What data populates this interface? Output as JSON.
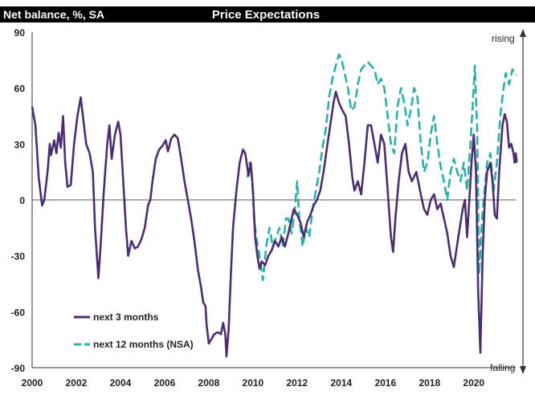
{
  "header": {
    "unit_label": "Net balance, %, SA",
    "title": "Price Expectations"
  },
  "annotations": {
    "top": "rising",
    "bottom": "falling"
  },
  "colors": {
    "header_bg": "#000000",
    "header_text": "#ffffff",
    "series_1": "#4b2e6f",
    "series_2": "#2ab0a8",
    "zero_line": "#555555",
    "axis": "#333333"
  },
  "chart_data": {
    "type": "line",
    "title": "Price Expectations",
    "ylabel": "Net balance, %, SA",
    "xlim": [
      2000,
      2021.9
    ],
    "ylim": [
      -90,
      90
    ],
    "y_ticks": [
      90,
      60,
      30,
      0,
      -30,
      -60,
      -90
    ],
    "x_ticks": [
      2000,
      2002,
      2004,
      2006,
      2008,
      2010,
      2012,
      2014,
      2016,
      2018,
      2020
    ],
    "legend_position": "bottom-left",
    "series": [
      {
        "name": "next 3 months",
        "style": "solid",
        "points": [
          [
            2000.0,
            50
          ],
          [
            2000.15,
            40
          ],
          [
            2000.3,
            12
          ],
          [
            2000.45,
            -3
          ],
          [
            2000.55,
            0
          ],
          [
            2000.7,
            15
          ],
          [
            2000.8,
            30
          ],
          [
            2000.85,
            24
          ],
          [
            2001.0,
            32
          ],
          [
            2001.1,
            25
          ],
          [
            2001.2,
            36
          ],
          [
            2001.3,
            28
          ],
          [
            2001.4,
            45
          ],
          [
            2001.5,
            20
          ],
          [
            2001.6,
            7
          ],
          [
            2001.75,
            8
          ],
          [
            2001.9,
            30
          ],
          [
            2002.05,
            45
          ],
          [
            2002.2,
            55
          ],
          [
            2002.3,
            45
          ],
          [
            2002.45,
            30
          ],
          [
            2002.6,
            25
          ],
          [
            2002.75,
            15
          ],
          [
            2002.85,
            -15
          ],
          [
            2003.0,
            -42
          ],
          [
            2003.1,
            -25
          ],
          [
            2003.25,
            5
          ],
          [
            2003.4,
            30
          ],
          [
            2003.5,
            40
          ],
          [
            2003.6,
            22
          ],
          [
            2003.75,
            35
          ],
          [
            2003.9,
            42
          ],
          [
            2004.0,
            35
          ],
          [
            2004.15,
            5
          ],
          [
            2004.25,
            -15
          ],
          [
            2004.35,
            -30
          ],
          [
            2004.5,
            -22
          ],
          [
            2004.65,
            -26
          ],
          [
            2004.8,
            -25
          ],
          [
            2004.95,
            -21
          ],
          [
            2005.1,
            -15
          ],
          [
            2005.25,
            -3
          ],
          [
            2005.35,
            0
          ],
          [
            2005.45,
            10
          ],
          [
            2005.6,
            22
          ],
          [
            2005.75,
            27
          ],
          [
            2005.9,
            29
          ],
          [
            2006.05,
            32
          ],
          [
            2006.15,
            26
          ],
          [
            2006.3,
            33
          ],
          [
            2006.45,
            35
          ],
          [
            2006.6,
            33
          ],
          [
            2006.75,
            22
          ],
          [
            2006.9,
            10
          ],
          [
            2007.05,
            0
          ],
          [
            2007.2,
            -10
          ],
          [
            2007.35,
            -22
          ],
          [
            2007.5,
            -37
          ],
          [
            2007.65,
            -47
          ],
          [
            2007.75,
            -55
          ],
          [
            2007.85,
            -57
          ],
          [
            2007.9,
            -67
          ],
          [
            2008.0,
            -77
          ],
          [
            2008.1,
            -75
          ],
          [
            2008.25,
            -72
          ],
          [
            2008.4,
            -71
          ],
          [
            2008.55,
            -72
          ],
          [
            2008.65,
            -66
          ],
          [
            2008.75,
            -72
          ],
          [
            2008.8,
            -84
          ],
          [
            2008.9,
            -70
          ],
          [
            2009.0,
            -40
          ],
          [
            2009.1,
            -15
          ],
          [
            2009.25,
            5
          ],
          [
            2009.4,
            20
          ],
          [
            2009.55,
            27
          ],
          [
            2009.65,
            25
          ],
          [
            2009.8,
            13
          ],
          [
            2009.9,
            20
          ],
          [
            2010.0,
            5
          ],
          [
            2010.1,
            -20
          ],
          [
            2010.2,
            -30
          ],
          [
            2010.3,
            -37
          ],
          [
            2010.4,
            -33
          ],
          [
            2010.55,
            -35
          ],
          [
            2010.7,
            -30
          ],
          [
            2010.85,
            -27
          ],
          [
            2011.0,
            -22
          ],
          [
            2011.15,
            -25
          ],
          [
            2011.3,
            -20
          ],
          [
            2011.45,
            -25
          ],
          [
            2011.6,
            -18
          ],
          [
            2011.75,
            -10
          ],
          [
            2011.85,
            -5
          ],
          [
            2012.0,
            -8
          ],
          [
            2012.15,
            -12
          ],
          [
            2012.3,
            -20
          ],
          [
            2012.45,
            -12
          ],
          [
            2012.6,
            -8
          ],
          [
            2012.75,
            -3
          ],
          [
            2012.9,
            0
          ],
          [
            2013.05,
            5
          ],
          [
            2013.2,
            15
          ],
          [
            2013.35,
            28
          ],
          [
            2013.5,
            40
          ],
          [
            2013.65,
            52
          ],
          [
            2013.75,
            58
          ],
          [
            2013.9,
            52
          ],
          [
            2014.05,
            48
          ],
          [
            2014.2,
            45
          ],
          [
            2014.35,
            30
          ],
          [
            2014.5,
            12
          ],
          [
            2014.6,
            5
          ],
          [
            2014.75,
            10
          ],
          [
            2014.9,
            3
          ],
          [
            2015.05,
            20
          ],
          [
            2015.2,
            40
          ],
          [
            2015.35,
            40
          ],
          [
            2015.5,
            30
          ],
          [
            2015.65,
            20
          ],
          [
            2015.8,
            35
          ],
          [
            2015.95,
            30
          ],
          [
            2016.1,
            5
          ],
          [
            2016.25,
            -20
          ],
          [
            2016.35,
            -28
          ],
          [
            2016.45,
            -10
          ],
          [
            2016.6,
            10
          ],
          [
            2016.75,
            25
          ],
          [
            2016.9,
            30
          ],
          [
            2017.05,
            15
          ],
          [
            2017.2,
            10
          ],
          [
            2017.4,
            15
          ],
          [
            2017.6,
            3
          ],
          [
            2017.75,
            -5
          ],
          [
            2017.9,
            -8
          ],
          [
            2018.05,
            0
          ],
          [
            2018.2,
            3
          ],
          [
            2018.35,
            -5
          ],
          [
            2018.5,
            -2
          ],
          [
            2018.65,
            -10
          ],
          [
            2018.8,
            -18
          ],
          [
            2018.95,
            -30
          ],
          [
            2019.1,
            -36
          ],
          [
            2019.3,
            -20
          ],
          [
            2019.5,
            -5
          ],
          [
            2019.6,
            0
          ],
          [
            2019.7,
            -20
          ],
          [
            2019.8,
            0
          ],
          [
            2019.9,
            20
          ],
          [
            2020.0,
            35
          ],
          [
            2020.1,
            15
          ],
          [
            2020.2,
            -50
          ],
          [
            2020.3,
            -82
          ],
          [
            2020.4,
            -30
          ],
          [
            2020.5,
            0
          ],
          [
            2020.6,
            15
          ],
          [
            2020.75,
            20
          ],
          [
            2020.85,
            10
          ],
          [
            2020.95,
            -8
          ],
          [
            2021.05,
            -10
          ],
          [
            2021.15,
            15
          ],
          [
            2021.3,
            40
          ],
          [
            2021.4,
            46
          ],
          [
            2021.5,
            42
          ],
          [
            2021.6,
            28
          ],
          [
            2021.7,
            30
          ],
          [
            2021.8,
            25
          ],
          [
            2021.85,
            20
          ],
          [
            2021.9,
            25
          ],
          [
            2021.95,
            20
          ]
        ]
      },
      {
        "name": "next 12 months (NSA)",
        "style": "dashed",
        "points": [
          [
            2009.75,
            12
          ],
          [
            2009.85,
            20
          ],
          [
            2009.95,
            15
          ],
          [
            2010.05,
            -10
          ],
          [
            2010.15,
            -20
          ],
          [
            2010.3,
            -30
          ],
          [
            2010.45,
            -43
          ],
          [
            2010.6,
            -25
          ],
          [
            2010.75,
            -15
          ],
          [
            2010.9,
            -25
          ],
          [
            2011.05,
            -20
          ],
          [
            2011.2,
            -15
          ],
          [
            2011.35,
            -25
          ],
          [
            2011.5,
            -10
          ],
          [
            2011.6,
            -10
          ],
          [
            2011.75,
            -18
          ],
          [
            2011.9,
            -5
          ],
          [
            2012.0,
            10
          ],
          [
            2012.1,
            -10
          ],
          [
            2012.25,
            -25
          ],
          [
            2012.4,
            -15
          ],
          [
            2012.55,
            -20
          ],
          [
            2012.7,
            -5
          ],
          [
            2012.85,
            5
          ],
          [
            2013.0,
            15
          ],
          [
            2013.15,
            28
          ],
          [
            2013.3,
            38
          ],
          [
            2013.45,
            55
          ],
          [
            2013.6,
            65
          ],
          [
            2013.75,
            72
          ],
          [
            2013.9,
            78
          ],
          [
            2014.0,
            76
          ],
          [
            2014.15,
            68
          ],
          [
            2014.3,
            60
          ],
          [
            2014.45,
            48
          ],
          [
            2014.6,
            50
          ],
          [
            2014.75,
            62
          ],
          [
            2014.9,
            70
          ],
          [
            2015.05,
            72
          ],
          [
            2015.2,
            74
          ],
          [
            2015.35,
            72
          ],
          [
            2015.5,
            70
          ],
          [
            2015.65,
            62
          ],
          [
            2015.8,
            65
          ],
          [
            2015.95,
            60
          ],
          [
            2016.1,
            45
          ],
          [
            2016.25,
            30
          ],
          [
            2016.4,
            25
          ],
          [
            2016.55,
            50
          ],
          [
            2016.7,
            60
          ],
          [
            2016.85,
            52
          ],
          [
            2017.0,
            40
          ],
          [
            2017.15,
            48
          ],
          [
            2017.3,
            60
          ],
          [
            2017.45,
            55
          ],
          [
            2017.6,
            30
          ],
          [
            2017.75,
            15
          ],
          [
            2017.9,
            20
          ],
          [
            2018.05,
            35
          ],
          [
            2018.2,
            45
          ],
          [
            2018.35,
            30
          ],
          [
            2018.5,
            18
          ],
          [
            2018.65,
            10
          ],
          [
            2018.8,
            0
          ],
          [
            2018.95,
            15
          ],
          [
            2019.1,
            22
          ],
          [
            2019.25,
            15
          ],
          [
            2019.4,
            10
          ],
          [
            2019.55,
            20
          ],
          [
            2019.7,
            5
          ],
          [
            2019.85,
            30
          ],
          [
            2019.95,
            50
          ],
          [
            2020.05,
            72
          ],
          [
            2020.15,
            40
          ],
          [
            2020.25,
            -40
          ],
          [
            2020.35,
            -15
          ],
          [
            2020.45,
            0
          ],
          [
            2020.6,
            20
          ],
          [
            2020.75,
            25
          ],
          [
            2020.9,
            5
          ],
          [
            2021.05,
            20
          ],
          [
            2021.2,
            45
          ],
          [
            2021.35,
            60
          ],
          [
            2021.45,
            68
          ],
          [
            2021.6,
            62
          ],
          [
            2021.75,
            70
          ],
          [
            2021.85,
            68
          ],
          [
            2021.95,
            67
          ]
        ]
      }
    ]
  }
}
